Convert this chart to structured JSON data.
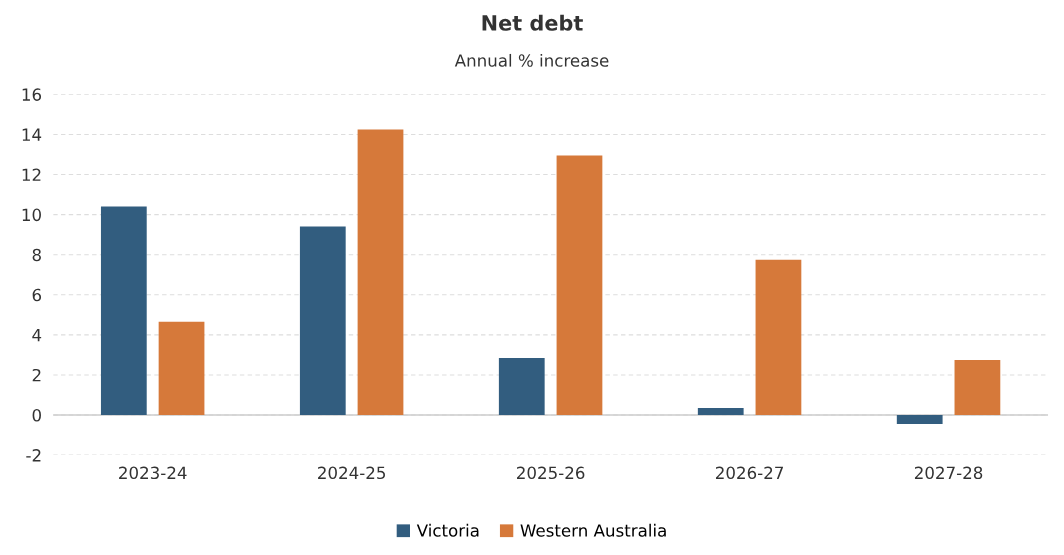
{
  "chart_data": {
    "type": "bar",
    "title": "Net debt",
    "subtitle": "Annual % increase",
    "categories": [
      "2023-24",
      "2024-25",
      "2025-26",
      "2026-27",
      "2027-28"
    ],
    "series": [
      {
        "name": "Victoria",
        "color": "#325d7f",
        "values": [
          10.4,
          9.4,
          2.85,
          0.35,
          -0.45
        ]
      },
      {
        "name": "Western Australia",
        "color": "#d6793a",
        "values": [
          4.65,
          14.25,
          12.95,
          7.75,
          2.75
        ]
      }
    ],
    "ylim": [
      -2,
      16
    ],
    "yticks": [
      -2,
      0,
      2,
      4,
      6,
      8,
      10,
      12,
      14,
      16
    ],
    "grid": "y",
    "legend": "bottom"
  }
}
